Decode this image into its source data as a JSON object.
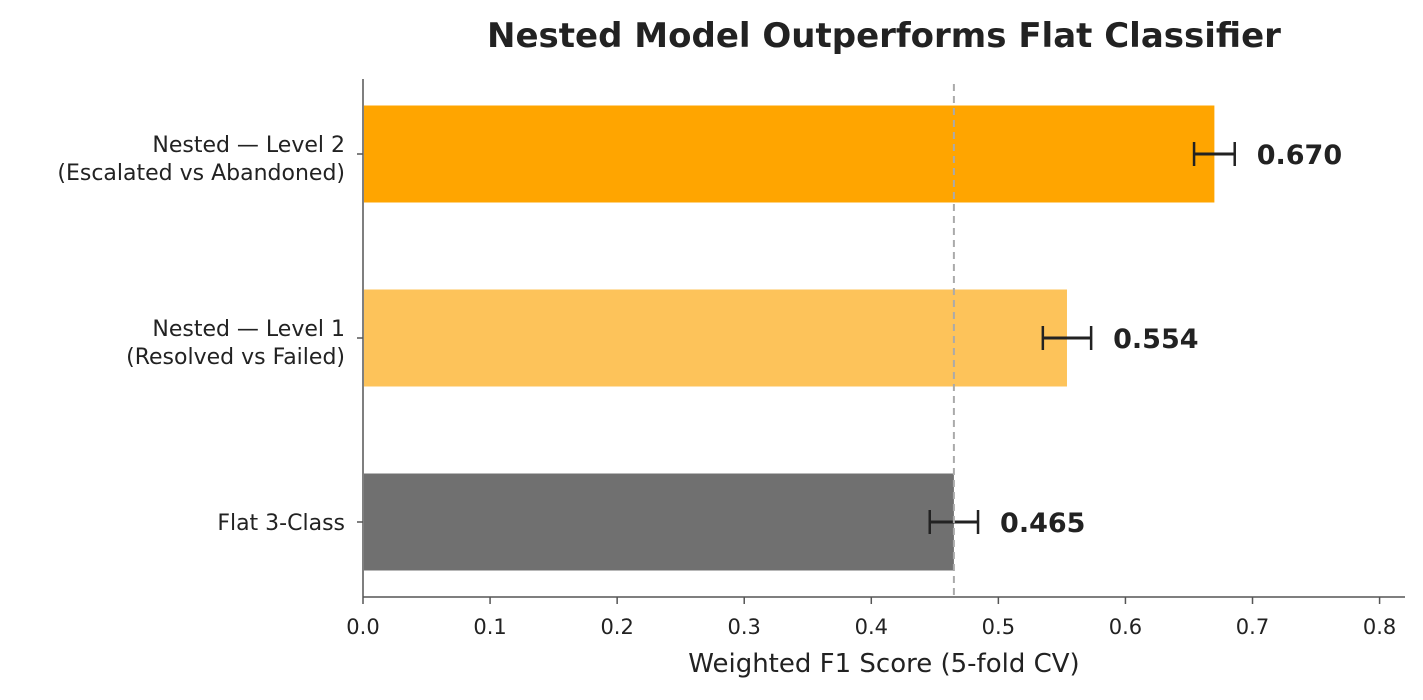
{
  "chart_data": {
    "type": "bar",
    "orientation": "horizontal",
    "title": "Nested Model Outperforms Flat Classifier",
    "xlabel": "Weighted F1 Score  (5-fold CV)",
    "ylabel": "",
    "xlim": [
      0.0,
      0.82
    ],
    "xticks": [
      "0.0",
      "0.1",
      "0.2",
      "0.3",
      "0.4",
      "0.5",
      "0.6",
      "0.7",
      "0.8"
    ],
    "xtick_values": [
      0.0,
      0.1,
      0.2,
      0.3,
      0.4,
      0.5,
      0.6,
      0.7,
      0.8
    ],
    "grid": false,
    "reference_line": 0.465,
    "bars": [
      {
        "label_line1": "Nested — Level 2",
        "label_line2": "(Escalated vs Abandoned)",
        "value": 0.67,
        "value_label": "0.670",
        "error": 0.016,
        "color": "#FFA500"
      },
      {
        "label_line1": "Nested — Level 1",
        "label_line2": "(Resolved vs Failed)",
        "value": 0.554,
        "value_label": "0.554",
        "error": 0.019,
        "color": "#FDC35A"
      },
      {
        "label_line1": "Flat 3-Class",
        "label_line2": "",
        "value": 0.465,
        "value_label": "0.465",
        "error": 0.019,
        "color": "#707070"
      }
    ]
  }
}
